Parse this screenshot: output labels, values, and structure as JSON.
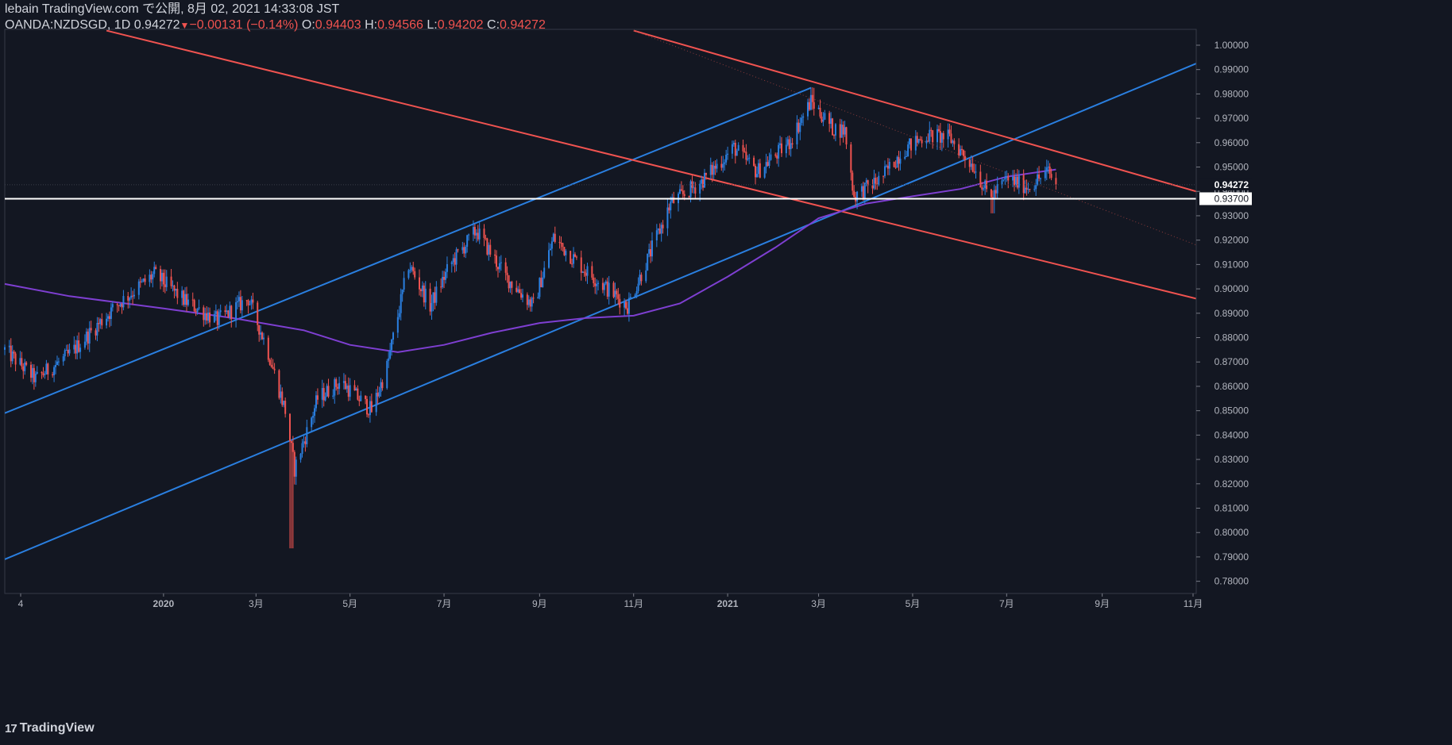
{
  "header": {
    "published": "lebain TradingView.com で公開, 8月 02, 2021 14:33:08 JST",
    "symbol": "OANDA:NZDSGD, 1D",
    "last": "0.94272",
    "change": "−0.00131 (−0.14%)",
    "o_label": "O:",
    "o_value": "0.94403",
    "h_label": "H:",
    "h_value": "0.94566",
    "l_label": "L:",
    "l_value": "0.94202",
    "c_label": "C:",
    "c_value": "0.94272"
  },
  "footer": {
    "brand": "TradingView"
  },
  "colors": {
    "background": "#131722",
    "up": "#2a7fe0",
    "down": "#f05350",
    "ma": "#7e3fd1",
    "channel_up": "#2a7fe0",
    "channel_down": "#f05350",
    "level": "#ffffff"
  },
  "chart_data": {
    "type": "candlestick",
    "x_ticks": [
      "4",
      "2020",
      "3月",
      "5月",
      "7月",
      "9月",
      "11月",
      "2021",
      "3月",
      "5月",
      "7月",
      "9月",
      "11月"
    ],
    "x_tick_dates": [
      "2019-10-01",
      "2020-01-01",
      "2020-03-01",
      "2020-05-01",
      "2020-07-01",
      "2020-09-01",
      "2020-11-01",
      "2021-01-01",
      "2021-03-01",
      "2021-05-01",
      "2021-07-01",
      "2021-09-01",
      "2021-11-01"
    ],
    "y_ticks": [
      "1.00000",
      "0.99000",
      "0.98000",
      "0.97000",
      "0.96000",
      "0.95000",
      "0.94000",
      "0.93000",
      "0.92000",
      "0.91000",
      "0.90000",
      "0.89000",
      "0.88000",
      "0.87000",
      "0.86000",
      "0.85000",
      "0.84000",
      "0.83000",
      "0.82000",
      "0.81000",
      "0.80000",
      "0.79000",
      "0.78000"
    ],
    "ylim": [
      0.775,
      1.0065
    ],
    "xlim": [
      "2019-09-20",
      "2021-11-01"
    ],
    "last_price": 0.94272,
    "last_price_label": "0.94272",
    "horizontal_level": 0.937,
    "horizontal_level_label": "0.93700",
    "anchors": [
      [
        "2019-09-20",
        0.875
      ],
      [
        "2019-10-10",
        0.863
      ],
      [
        "2019-11-01",
        0.873
      ],
      [
        "2019-12-01",
        0.893
      ],
      [
        "2019-12-26",
        0.906
      ],
      [
        "2020-01-15",
        0.895
      ],
      [
        "2020-02-05",
        0.887
      ],
      [
        "2020-02-25",
        0.896
      ],
      [
        "2020-03-08",
        0.876
      ],
      [
        "2020-03-20",
        0.85
      ],
      [
        "2020-03-26",
        0.826
      ],
      [
        "2020-04-10",
        0.855
      ],
      [
        "2020-04-25",
        0.862
      ],
      [
        "2020-05-15",
        0.85
      ],
      [
        "2020-05-25",
        0.868
      ],
      [
        "2020-06-08",
        0.91
      ],
      [
        "2020-06-22",
        0.893
      ],
      [
        "2020-07-05",
        0.91
      ],
      [
        "2020-07-22",
        0.924
      ],
      [
        "2020-08-10",
        0.905
      ],
      [
        "2020-08-28",
        0.893
      ],
      [
        "2020-09-10",
        0.921
      ],
      [
        "2020-09-30",
        0.908
      ],
      [
        "2020-10-15",
        0.9
      ],
      [
        "2020-10-28",
        0.893
      ],
      [
        "2020-11-10",
        0.912
      ],
      [
        "2020-11-25",
        0.935
      ],
      [
        "2020-12-15",
        0.944
      ],
      [
        "2021-01-05",
        0.958
      ],
      [
        "2021-01-20",
        0.948
      ],
      [
        "2021-02-10",
        0.96
      ],
      [
        "2021-02-24",
        0.977
      ],
      [
        "2021-03-10",
        0.966
      ],
      [
        "2021-03-18",
        0.965
      ],
      [
        "2021-03-24",
        0.938
      ],
      [
        "2021-04-10",
        0.945
      ],
      [
        "2021-04-25",
        0.957
      ],
      [
        "2021-05-10",
        0.963
      ],
      [
        "2021-05-25",
        0.962
      ],
      [
        "2021-06-10",
        0.95
      ],
      [
        "2021-06-20",
        0.937
      ],
      [
        "2021-07-01",
        0.945
      ],
      [
        "2021-07-15",
        0.942
      ],
      [
        "2021-07-28",
        0.948
      ],
      [
        "2021-08-02",
        0.9427
      ]
    ],
    "extremes": [
      [
        "2020-03-24",
        0.7935,
        0.835
      ],
      [
        "2021-02-25",
        0.9775,
        0.9825
      ],
      [
        "2020-01-01",
        0.901,
        0.908
      ],
      [
        "2021-06-22",
        0.931,
        0.94
      ]
    ],
    "ma_points": [
      [
        "2019-09-20",
        0.902
      ],
      [
        "2019-11-01",
        0.897
      ],
      [
        "2020-01-01",
        0.892
      ],
      [
        "2020-02-15",
        0.888
      ],
      [
        "2020-04-01",
        0.883
      ],
      [
        "2020-05-01",
        0.877
      ],
      [
        "2020-06-01",
        0.874
      ],
      [
        "2020-07-01",
        0.877
      ],
      [
        "2020-08-01",
        0.882
      ],
      [
        "2020-09-01",
        0.886
      ],
      [
        "2020-10-01",
        0.888
      ],
      [
        "2020-11-01",
        0.889
      ],
      [
        "2020-12-01",
        0.894
      ],
      [
        "2021-01-01",
        0.905
      ],
      [
        "2021-02-01",
        0.917
      ],
      [
        "2021-03-01",
        0.929
      ],
      [
        "2021-04-01",
        0.935
      ],
      [
        "2021-05-01",
        0.938
      ],
      [
        "2021-06-01",
        0.941
      ],
      [
        "2021-07-01",
        0.946
      ],
      [
        "2021-08-02",
        0.949
      ]
    ],
    "trendlines": [
      {
        "kind": "channel_up",
        "from": [
          "2019-09-20",
          0.849
        ],
        "to": [
          "2021-02-24",
          0.9825
        ]
      },
      {
        "kind": "channel_up",
        "from": [
          "2019-09-20",
          0.789
        ],
        "to": [
          "2021-11-01",
          0.9925
        ]
      },
      {
        "kind": "channel_down",
        "from": [
          "2019-11-25",
          1.006
        ],
        "to": [
          "2021-11-01",
          0.896
        ]
      },
      {
        "kind": "channel_down",
        "from": [
          "2020-11-01",
          1.006
        ],
        "to": [
          "2021-11-01",
          0.94
        ]
      },
      {
        "kind": "median",
        "from": [
          "2020-11-01",
          1.006
        ],
        "to": [
          "2021-11-01",
          0.918
        ]
      }
    ]
  }
}
